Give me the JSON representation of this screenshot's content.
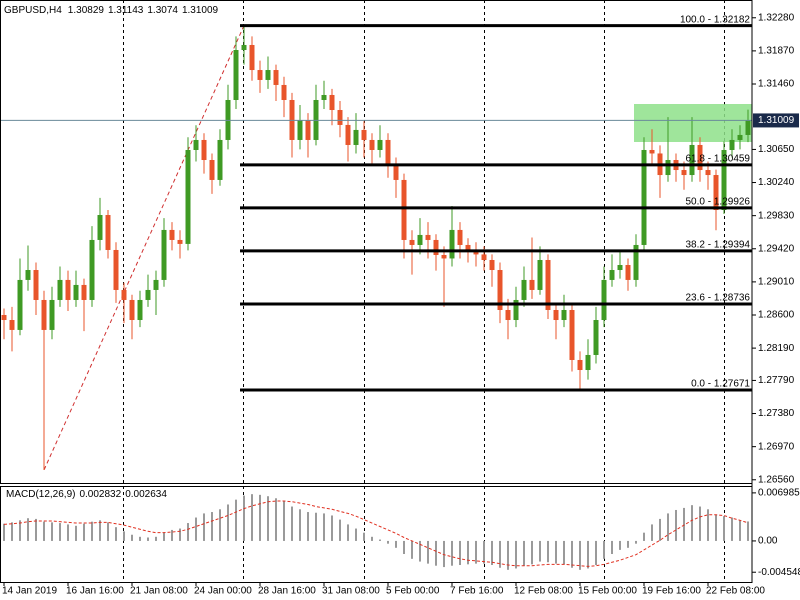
{
  "chart_data": [
    {
      "type": "candlestick",
      "title": "GBPUSD,H4",
      "categories": [
        "14 Jan 2019",
        null,
        null,
        null,
        null,
        null,
        null,
        null,
        "16 Jan 16:00",
        null,
        null,
        null,
        null,
        null,
        null,
        null,
        "21 Jan 08:00",
        null,
        null,
        null,
        null,
        null,
        null,
        null,
        "24 Jan 00:00",
        null,
        null,
        null,
        null,
        null,
        null,
        null,
        "28 Jan 16:00",
        null,
        null,
        null,
        null,
        null,
        null,
        null,
        "31 Jan 08:00",
        null,
        null,
        null,
        null,
        null,
        null,
        null,
        "5 Feb 00:00",
        null,
        null,
        null,
        null,
        null,
        null,
        null,
        "7 Feb 16:00",
        null,
        null,
        null,
        null,
        null,
        null,
        null,
        "12 Feb 08:00",
        null,
        null,
        null,
        null,
        null,
        null,
        null,
        "15 Feb 00:00",
        null,
        null,
        null,
        null,
        null,
        null,
        null,
        "19 Feb 16:00",
        null,
        null,
        null,
        null,
        null,
        null,
        null,
        "22 Feb 08:00",
        null,
        null,
        null,
        null,
        null
      ],
      "open": [
        1.286,
        1.28538,
        1.28415,
        1.29034,
        1.29157,
        1.28786,
        1.28415,
        1.28786,
        1.29034,
        1.28786,
        1.28972,
        1.28786,
        1.29529,
        1.29838,
        1.29405,
        1.2891,
        1.28786,
        1.28538,
        1.28786,
        1.2891,
        1.29034,
        1.29653,
        1.29529,
        1.2948,
        1.30643,
        1.30767,
        1.30519,
        1.30272,
        1.30767,
        1.31262,
        1.31881,
        1.31943,
        1.31633,
        1.3151,
        1.31633,
        1.31448,
        1.31262,
        1.30767,
        1.31014,
        1.30767,
        1.31262,
        1.31324,
        1.31138,
        1.30953,
        1.30705,
        1.30891,
        1.30767,
        1.30643,
        1.30767,
        1.30457,
        1.30272,
        1.29529,
        1.29467,
        1.29591,
        1.29529,
        1.29343,
        1.293,
        1.29653,
        1.29467,
        1.29405,
        1.2935,
        1.29281,
        1.29157,
        1.28662,
        1.28538,
        1.28786,
        1.29034,
        1.2891,
        1.29281,
        1.28662,
        1.28538,
        1.28662,
        1.28043,
        1.27919,
        1.28105,
        1.28538,
        1.29034,
        1.29157,
        1.29219,
        1.29034,
        1.29467,
        1.30643,
        1.306,
        1.30333,
        1.30519,
        1.30395,
        1.30333,
        1.30705,
        1.30395,
        1.30333,
        1.299,
        1.30643,
        1.30767,
        1.30829
      ],
      "high": [
        1.2868,
        1.287,
        1.293,
        1.2946,
        1.2925,
        1.289,
        1.2895,
        1.292,
        1.2915,
        1.2915,
        1.2905,
        1.297,
        1.3005,
        1.299,
        1.295,
        1.29,
        1.2885,
        1.289,
        1.291,
        1.2915,
        1.298,
        1.2975,
        1.2965,
        1.308,
        1.3095,
        1.3085,
        1.306,
        1.309,
        1.3145,
        1.3205,
        1.32182,
        1.3205,
        1.3175,
        1.318,
        1.317,
        1.3155,
        1.3135,
        1.312,
        1.311,
        1.3145,
        1.315,
        1.314,
        1.3125,
        1.3105,
        1.311,
        1.31,
        1.3085,
        1.3095,
        1.3085,
        1.3055,
        1.3035,
        1.2965,
        1.298,
        1.2975,
        1.296,
        1.2945,
        1.2995,
        1.2975,
        1.2955,
        1.295,
        1.2945,
        1.2935,
        1.2925,
        1.288,
        1.2895,
        1.292,
        1.2956,
        1.2945,
        1.2935,
        1.2875,
        1.2885,
        1.2875,
        1.2815,
        1.283,
        1.287,
        1.292,
        1.2935,
        1.294,
        1.293,
        1.296,
        1.308,
        1.309,
        1.307,
        1.3105,
        1.306,
        1.305,
        1.3105,
        1.308,
        1.305,
        1.304,
        1.3075,
        1.309,
        1.3095,
        1.31143
      ],
      "low": [
        1.283,
        1.2815,
        1.2835,
        1.289,
        1.286,
        1.26681,
        1.283,
        1.287,
        1.2865,
        1.287,
        1.284,
        1.287,
        1.294,
        1.293,
        1.2875,
        1.285,
        1.283,
        1.2845,
        1.287,
        1.286,
        1.2895,
        1.294,
        1.293,
        1.294,
        1.305,
        1.3035,
        1.301,
        1.302,
        1.3065,
        1.3115,
        1.317,
        1.315,
        1.3135,
        1.314,
        1.3125,
        1.3105,
        1.3055,
        1.3065,
        1.3055,
        1.307,
        1.3115,
        1.3095,
        1.308,
        1.305,
        1.306,
        1.3055,
        1.3045,
        1.3055,
        1.303,
        1.3005,
        1.293,
        1.291,
        1.2935,
        1.293,
        1.2915,
        1.287,
        1.292,
        1.293,
        1.2925,
        1.292,
        1.2915,
        1.2895,
        1.285,
        1.283,
        1.2845,
        1.287,
        1.288,
        1.2885,
        1.2855,
        1.283,
        1.2845,
        1.279,
        1.27671,
        1.278,
        1.28,
        1.2845,
        1.2895,
        1.2905,
        1.289,
        1.2895,
        1.294,
        1.3045,
        1.3005,
        1.3025,
        1.3025,
        1.3015,
        1.3025,
        1.3025,
        1.3015,
        1.2965,
        1.2985,
        1.3055,
        1.3065,
        1.3074
      ],
      "close": [
        1.28538,
        1.28415,
        1.29034,
        1.29157,
        1.28786,
        1.28415,
        1.28786,
        1.29034,
        1.28786,
        1.28972,
        1.28786,
        1.29529,
        1.29838,
        1.29405,
        1.2891,
        1.28786,
        1.28538,
        1.28786,
        1.2891,
        1.29034,
        1.29653,
        1.29529,
        1.2948,
        1.30643,
        1.30767,
        1.30519,
        1.30272,
        1.30767,
        1.31262,
        1.31881,
        1.31943,
        1.31633,
        1.3151,
        1.31633,
        1.31448,
        1.31262,
        1.30767,
        1.31014,
        1.30767,
        1.31262,
        1.31324,
        1.31138,
        1.30953,
        1.30705,
        1.30891,
        1.30767,
        1.30643,
        1.30767,
        1.30457,
        1.30272,
        1.29529,
        1.29467,
        1.29591,
        1.29529,
        1.29343,
        1.293,
        1.29653,
        1.29467,
        1.29405,
        1.2935,
        1.29281,
        1.29157,
        1.28662,
        1.28538,
        1.28786,
        1.29034,
        1.2891,
        1.29281,
        1.28662,
        1.28538,
        1.28662,
        1.28043,
        1.27919,
        1.28105,
        1.28538,
        1.29034,
        1.29157,
        1.29219,
        1.29034,
        1.29467,
        1.30643,
        1.306,
        1.30333,
        1.30519,
        1.30395,
        1.30333,
        1.30705,
        1.30395,
        1.30333,
        1.299,
        1.30643,
        1.30767,
        1.30829,
        1.31009
      ],
      "up_color": "#3f9a24",
      "down_color": "#e8552b",
      "ylim": [
        1.2652,
        1.325
      ],
      "yticks": [
        {
          "value": 1.3228,
          "label": "1.32280"
        },
        {
          "value": 1.3187,
          "label": "1.31870"
        },
        {
          "value": 1.3146,
          "label": "1.31460"
        },
        {
          "value": 1.3065,
          "label": "1.30650"
        },
        {
          "value": 1.3024,
          "label": "1.30240"
        },
        {
          "value": 1.2983,
          "label": "1.29830"
        },
        {
          "value": 1.2942,
          "label": "1.29420"
        },
        {
          "value": 1.2901,
          "label": "1.29010"
        },
        {
          "value": 1.286,
          "label": "1.28600"
        },
        {
          "value": 1.2819,
          "label": "1.28190"
        },
        {
          "value": 1.2779,
          "label": "1.27790"
        },
        {
          "value": 1.2738,
          "label": "1.27380"
        },
        {
          "value": 1.2697,
          "label": "1.26970"
        },
        {
          "value": 1.2656,
          "label": "1.26560"
        }
      ],
      "fib_levels": [
        {
          "price": 1.32182,
          "label": "100.0 - 1.32182"
        },
        {
          "price": 1.30459,
          "label": "61.8 - 1.30459"
        },
        {
          "price": 1.29926,
          "label": "50.0 - 1.29926"
        },
        {
          "price": 1.29394,
          "label": "38.2 - 1.29394"
        },
        {
          "price": 1.28736,
          "label": "23.6 - 1.28736"
        },
        {
          "price": 1.27671,
          "label": "0.0 - 1.27671"
        }
      ]
    },
    {
      "type": "macd",
      "title": "MACD(12,26,9)",
      "histogram": [
        0.0025,
        0.0027,
        0.003,
        0.0033,
        0.0032,
        0.0028,
        0.0027,
        0.0026,
        0.0024,
        0.0022,
        0.0025,
        0.0028,
        0.003,
        0.0027,
        0.002,
        0.0014,
        0.0009,
        0.0006,
        0.0005,
        0.0006,
        0.0012,
        0.0016,
        0.0018,
        0.0026,
        0.0034,
        0.004,
        0.0042,
        0.0046,
        0.0053,
        0.006,
        0.0066,
        0.0068,
        0.0067,
        0.0065,
        0.0062,
        0.0058,
        0.005,
        0.0046,
        0.0042,
        0.0041,
        0.004,
        0.0037,
        0.0031,
        0.0024,
        0.0018,
        0.0012,
        0.0006,
        0.0002,
        -0.0004,
        -0.001,
        -0.0019,
        -0.0026,
        -0.003,
        -0.0033,
        -0.0036,
        -0.0038,
        -0.0036,
        -0.0035,
        -0.0034,
        -0.0033,
        -0.0033,
        -0.0035,
        -0.0039,
        -0.0042,
        -0.004,
        -0.0036,
        -0.0034,
        -0.003,
        -0.0031,
        -0.0033,
        -0.0034,
        -0.0039,
        -0.0042,
        -0.004,
        -0.0035,
        -0.0026,
        -0.0019,
        -0.0013,
        -0.001,
        -0.0004,
        0.0012,
        0.0024,
        0.0032,
        0.004,
        0.0045,
        0.0048,
        0.0052,
        0.005,
        0.0046,
        0.0038,
        0.0036,
        0.0034,
        0.003,
        0.002832
      ],
      "signal": [
        0.0024,
        0.0025,
        0.0026,
        0.0028,
        0.0029,
        0.0029,
        0.0029,
        0.0028,
        0.0027,
        0.0026,
        0.0026,
        0.0026,
        0.0027,
        0.0027,
        0.0025,
        0.0023,
        0.002,
        0.0017,
        0.0014,
        0.0012,
        0.0012,
        0.0013,
        0.0014,
        0.0017,
        0.0021,
        0.0025,
        0.0029,
        0.0033,
        0.0037,
        0.0042,
        0.0047,
        0.0051,
        0.0054,
        0.0057,
        0.0058,
        0.0058,
        0.0057,
        0.0055,
        0.0053,
        0.005,
        0.0048,
        0.0046,
        0.0043,
        0.004,
        0.0036,
        0.0031,
        0.0026,
        0.0021,
        0.0016,
        0.0011,
        0.0005,
        0,
        -0.0005,
        -0.001,
        -0.0015,
        -0.002,
        -0.0023,
        -0.0026,
        -0.0028,
        -0.0029,
        -0.003,
        -0.0031,
        -0.0033,
        -0.0035,
        -0.0036,
        -0.0036,
        -0.0036,
        -0.0035,
        -0.0034,
        -0.0034,
        -0.0034,
        -0.0035,
        -0.0036,
        -0.0037,
        -0.0036,
        -0.0034,
        -0.0031,
        -0.0028,
        -0.0024,
        -0.002,
        -0.0013,
        -0.0006,
        0.0001,
        0.0009,
        0.0016,
        0.0023,
        0.003,
        0.0035,
        0.0038,
        0.0038,
        0.0037,
        0.0033,
        0.003,
        0.002634
      ],
      "histogram_color": "#9a9a9a",
      "signal_color": "#e03020",
      "ylim": [
        -0.00597,
        0.00784
      ],
      "yticks": [
        0.006985,
        {
          "value": 0,
          "label": "0.00"
        },
        -0.004548
      ]
    }
  ]
}
